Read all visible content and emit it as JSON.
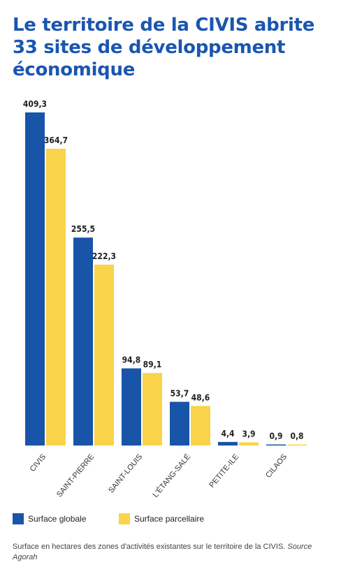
{
  "title": "Le territoire de la CIVIS abrite 33 sites de développement économique",
  "footnote": {
    "text": "Surface en hectares des zones d'activités existantes sur le territoire de la CIVIS.",
    "source": "Source Agorah"
  },
  "colors": {
    "series_1": "#1854a8",
    "series_2": "#f9d44a"
  },
  "chart_data": {
    "type": "bar",
    "categories": [
      "CIVIS",
      "SAINT-PIERRE",
      "SAINT-LOUIS",
      "L'ÉTANG-SALÉ",
      "PETITE-ILE",
      "CILAOS"
    ],
    "series": [
      {
        "name": "Surface globale",
        "values": [
          409.3,
          255.5,
          94.8,
          53.7,
          4.4,
          0.9
        ],
        "labels": [
          "409,3",
          "255,5",
          "94,8",
          "53,7",
          "4,4",
          "0,9"
        ]
      },
      {
        "name": "Surface parcellaire",
        "values": [
          364.7,
          222.3,
          89.1,
          48.6,
          3.9,
          0.8
        ],
        "labels": [
          "364,7",
          "222,3",
          "89,1",
          "48,6",
          "3,9",
          "0,8"
        ]
      }
    ],
    "xlabel": "",
    "ylabel": "",
    "ylim": [
      0,
      409.3
    ],
    "grid": false,
    "legend": "bottom-left"
  }
}
